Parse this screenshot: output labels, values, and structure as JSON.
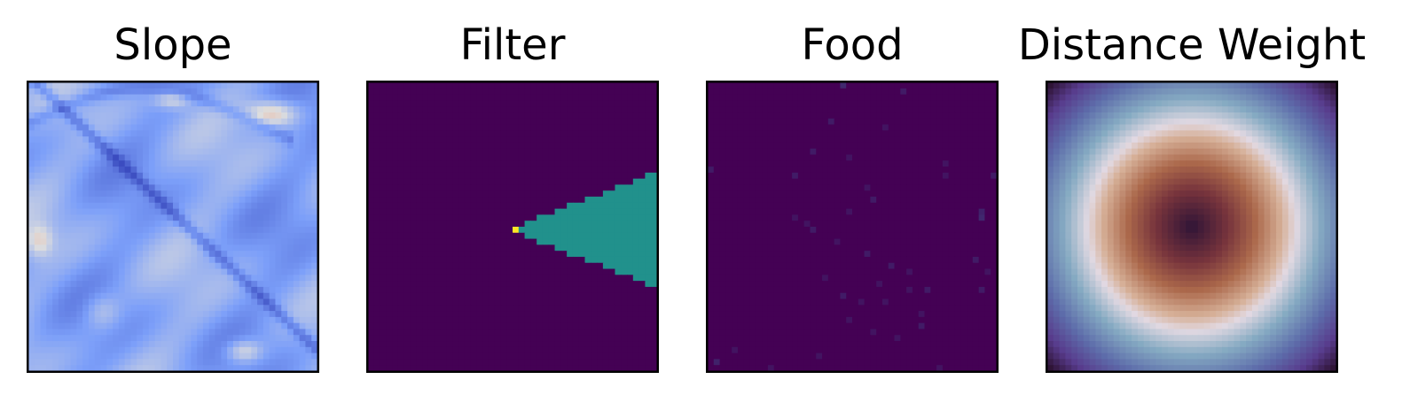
{
  "figure": {
    "panels": [
      {
        "id": "slope",
        "title": "Slope",
        "colormap": "coolwarm"
      },
      {
        "id": "filter",
        "title": "Filter",
        "colormap": "viridis"
      },
      {
        "id": "food",
        "title": "Food",
        "colormap": "viridis"
      },
      {
        "id": "distance-weight",
        "title": "Distance Weight",
        "colormap": "twilight_shifted"
      }
    ]
  },
  "chart_data": [
    {
      "type": "heatmap",
      "title": "Slope",
      "grid": [
        48,
        48
      ],
      "colormap": "coolwarm",
      "axes_ticks": false,
      "description_of_values": "mostly low (blue) values with a dark-blue diagonal ridge from upper-left to lower-right and a dark ridge along the top, with scattered warm patches near top-right, left edge and bottom"
    },
    {
      "type": "heatmap",
      "title": "Filter",
      "grid": [
        48,
        48
      ],
      "colormap": "viridis",
      "axes_ticks": false,
      "background_value": 0,
      "cone": {
        "apex_col": 24,
        "apex_row": 24,
        "apex_value": 1,
        "fill_value": 0.5,
        "direction": "right",
        "end_col": 47,
        "half_height_at_edge": 9
      }
    },
    {
      "type": "heatmap",
      "title": "Food",
      "grid": [
        48,
        48
      ],
      "colormap": "viridis",
      "axes_ticks": false,
      "background_value": 0,
      "sparse_low_values": [
        [
          0,
          22,
          0.12
        ],
        [
          1,
          32,
          0.08
        ],
        [
          6,
          20,
          0.08
        ],
        [
          7,
          29,
          0.06
        ],
        [
          11,
          17,
          0.08
        ],
        [
          12,
          23,
          0.06
        ],
        [
          13,
          39,
          0.06
        ],
        [
          14,
          0,
          0.08
        ],
        [
          15,
          14,
          0.08
        ],
        [
          15,
          39,
          0.06
        ],
        [
          15,
          47,
          0.08
        ],
        [
          17,
          26,
          0.06
        ],
        [
          19,
          27,
          0.08
        ],
        [
          21,
          23,
          0.06
        ],
        [
          22,
          14,
          0.06
        ],
        [
          23,
          16,
          0.06
        ],
        [
          22,
          45,
          0.12
        ],
        [
          21,
          45,
          0.1
        ],
        [
          24,
          17,
          0.08
        ],
        [
          26,
          21,
          0.06
        ],
        [
          28,
          26,
          0.08
        ],
        [
          29,
          44,
          0.08
        ],
        [
          30,
          30,
          0.08
        ],
        [
          31,
          33,
          0.06
        ],
        [
          31,
          46,
          0.06
        ],
        [
          32,
          19,
          0.06
        ],
        [
          33,
          28,
          0.06
        ],
        [
          34,
          33,
          0.06
        ],
        [
          34,
          36,
          0.08
        ],
        [
          34,
          45,
          0.08
        ],
        [
          35,
          22,
          0.08
        ],
        [
          36,
          25,
          0.06
        ],
        [
          36,
          29,
          0.06
        ],
        [
          38,
          35,
          0.06
        ],
        [
          39,
          23,
          0.06
        ],
        [
          40,
          35,
          0.08
        ],
        [
          41,
          27,
          0.06
        ],
        [
          42,
          31,
          0.06
        ],
        [
          44,
          4,
          0.06
        ],
        [
          45,
          18,
          0.06
        ],
        [
          46,
          1,
          0.1
        ],
        [
          47,
          10,
          0.06
        ],
        [
          47,
          38,
          0.06
        ]
      ]
    },
    {
      "type": "heatmap",
      "title": "Distance Weight",
      "grid": [
        48,
        48
      ],
      "colormap": "twilight_shifted",
      "axes_ticks": false,
      "description_of_values": "radial function of distance from center: darkest at center, warm brown/orange ring, white ring at mid radius, teal/blue then purple toward corners"
    }
  ]
}
